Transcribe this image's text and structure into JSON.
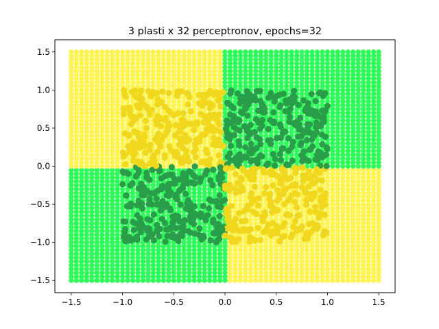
{
  "chart_data": {
    "type": "scatter",
    "title": "3 plasti x 32 perceptronov, epochs=32",
    "xlabel": "",
    "ylabel": "",
    "xlim": [
      -1.66,
      1.66
    ],
    "ylim": [
      -1.66,
      1.66
    ],
    "xticks": [
      -1.5,
      -1.0,
      -0.5,
      0.0,
      0.5,
      1.0,
      1.5
    ],
    "xtick_labels": [
      "−1.5",
      "−1.0",
      "−0.5",
      "0.0",
      "0.5",
      "1.0",
      "1.5"
    ],
    "yticks": [
      -1.5,
      -1.0,
      -0.5,
      0.0,
      0.5,
      1.0,
      1.5
    ],
    "ytick_labels": [
      "−1.5",
      "−1.0",
      "−0.5",
      "0.0",
      "0.5",
      "1.0",
      "1.5"
    ],
    "grid": false,
    "legend": "none",
    "background_grid": {
      "description": "prediction grid over [-1.5, 1.5] x [-1.5, 1.5], step 0.05",
      "x_range": [
        -1.5,
        1.5
      ],
      "y_range": [
        -1.5,
        1.5
      ],
      "step": 0.05,
      "colors": {
        "class_a": "#fff44f",
        "class_b": "#2aff55"
      },
      "regions": [
        {
          "x": [
            -1.5,
            0.0
          ],
          "y": [
            0.0,
            1.5
          ],
          "class": "class_a"
        },
        {
          "x": [
            0.0,
            1.5
          ],
          "y": [
            0.0,
            1.5
          ],
          "class": "class_b"
        },
        {
          "x": [
            -1.5,
            0.0
          ],
          "y": [
            -1.5,
            0.0
          ],
          "class": "class_b"
        },
        {
          "x": [
            0.0,
            1.5
          ],
          "y": [
            -1.5,
            0.0
          ],
          "class": "class_a"
        }
      ]
    },
    "training_points": {
      "description": "uniform random points in [-1, 1] x [-1, 1]",
      "x_range": [
        -1.0,
        1.0
      ],
      "y_range": [
        -1.0,
        1.0
      ],
      "count": 1000,
      "colors": {
        "class_a": "#f0d81e",
        "class_b": "#2a9d4a"
      },
      "rule": "class_b where x*y > 0 in top-right, x*y > 0 bottom-left; class_a otherwise"
    }
  }
}
